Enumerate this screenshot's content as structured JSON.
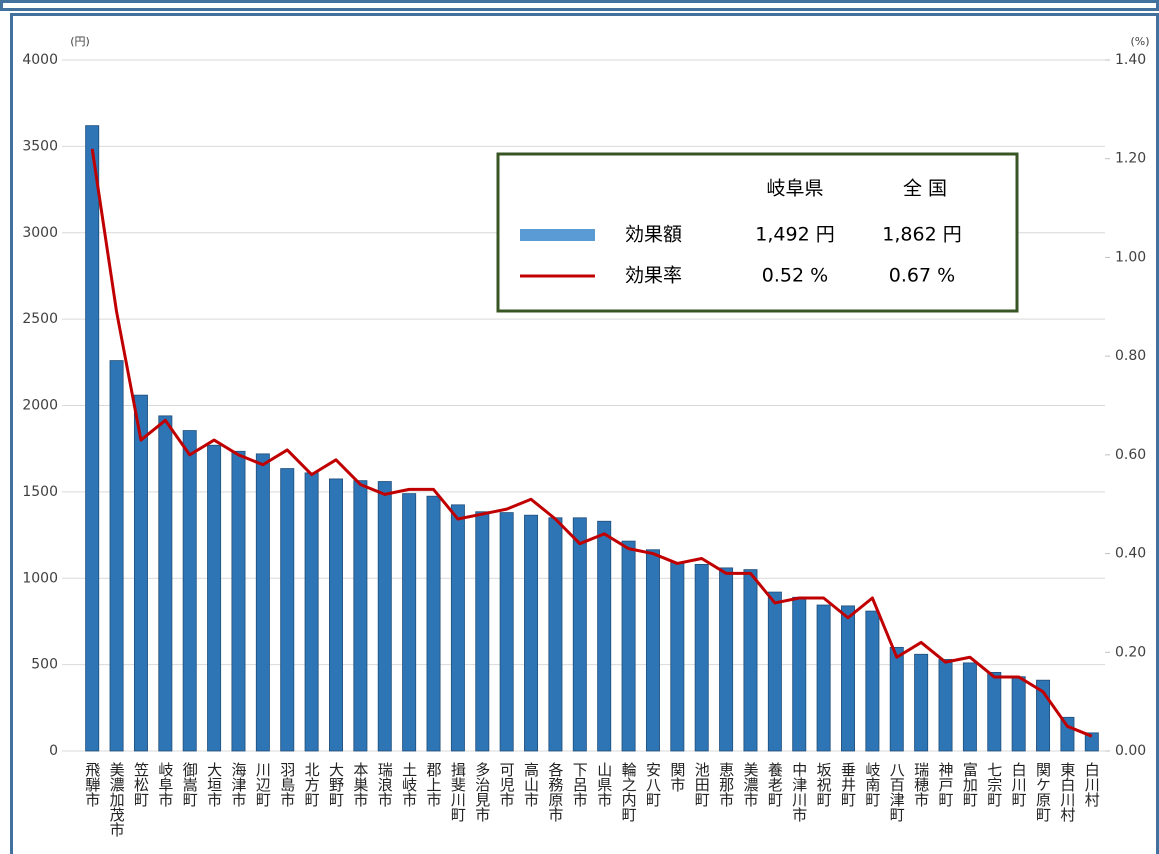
{
  "chart_data": {
    "type": "bar-line",
    "y_unit": "(円)",
    "y2_unit": "(%)",
    "categories": [
      "飛騨市",
      "美濃加茂市",
      "笠松町",
      "岐阜市",
      "御嵩町",
      "大垣市",
      "海津市",
      "川辺町",
      "羽島市",
      "北方町",
      "大野町",
      "本巣市",
      "瑞浪市",
      "土岐市",
      "郡上市",
      "揖斐川町",
      "多治見市",
      "可児市",
      "高山市",
      "各務原市",
      "下呂市",
      "山県市",
      "輪之内町",
      "安八町",
      "関市",
      "池田町",
      "恵那市",
      "美濃市",
      "養老町",
      "中津川市",
      "坂祝町",
      "垂井町",
      "岐南町",
      "八百津町",
      "瑞穂市",
      "神戸町",
      "富加町",
      "七宗町",
      "白川町",
      "関ケ原町",
      "東白川村",
      "白川村"
    ],
    "series": [
      {
        "name": "効果額",
        "color": "#2e75b6",
        "kind": "bar",
        "values": [
          3620,
          2260,
          2060,
          1940,
          1855,
          1770,
          1735,
          1720,
          1635,
          1610,
          1575,
          1565,
          1560,
          1490,
          1475,
          1425,
          1385,
          1380,
          1365,
          1350,
          1350,
          1330,
          1215,
          1165,
          1090,
          1080,
          1060,
          1050,
          920,
          890,
          845,
          840,
          810,
          600,
          560,
          530,
          510,
          455,
          430,
          410,
          195,
          105
        ]
      },
      {
        "name": "効果率",
        "color": "#c00000",
        "kind": "line",
        "axis": "y2",
        "values": [
          1.22,
          0.89,
          0.63,
          0.67,
          0.6,
          0.63,
          0.6,
          0.58,
          0.61,
          0.56,
          0.59,
          0.54,
          0.52,
          0.53,
          0.53,
          0.47,
          0.48,
          0.49,
          0.51,
          0.47,
          0.42,
          0.44,
          0.41,
          0.4,
          0.38,
          0.39,
          0.36,
          0.36,
          0.3,
          0.31,
          0.31,
          0.27,
          0.31,
          0.19,
          0.22,
          0.18,
          0.19,
          0.15,
          0.15,
          0.12,
          0.05,
          0.03
        ]
      }
    ],
    "ylim": [
      0,
      4000
    ],
    "yticks": [
      0,
      500,
      1000,
      1500,
      2000,
      2500,
      3000,
      3500,
      4000
    ],
    "y2lim": [
      0,
      1.4
    ],
    "y2ticks": [
      {
        "value": 0,
        "label": "0.00"
      },
      {
        "value": 0.2,
        "label": "0.20"
      },
      {
        "value": 0.4,
        "label": "0.40"
      },
      {
        "value": 0.6,
        "label": "0.60"
      },
      {
        "value": 0.8,
        "label": "0.80"
      },
      {
        "value": 1.0,
        "label": "1.00"
      },
      {
        "value": 1.2,
        "label": "1.20"
      },
      {
        "value": 1.4,
        "label": "1.40"
      }
    ],
    "grid": true,
    "legend_table": {
      "columns": [
        "岐阜県",
        "全 国"
      ],
      "rows": [
        [
          "1,492 円",
          "1,862 円"
        ],
        [
          "0.52 %",
          "0.67 %"
        ]
      ]
    }
  }
}
